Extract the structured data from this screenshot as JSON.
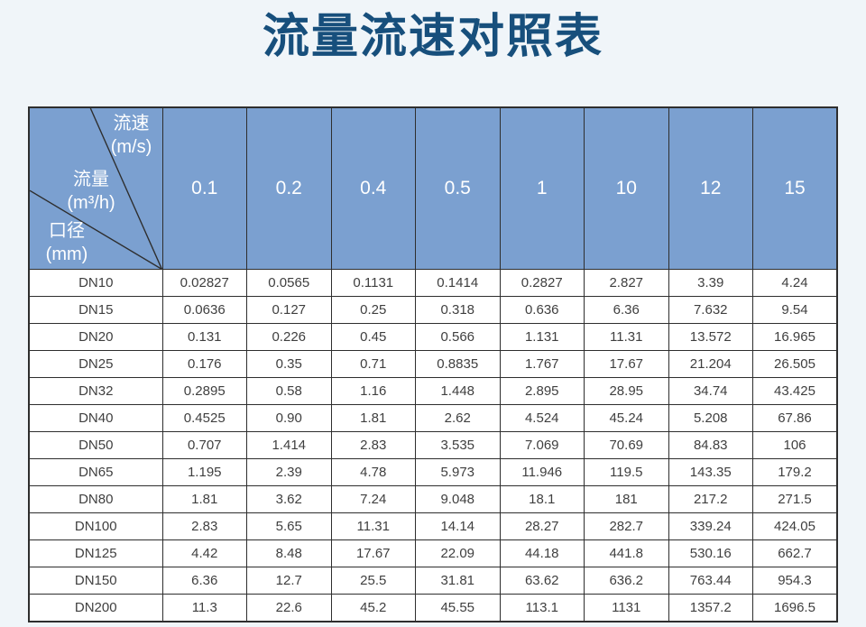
{
  "page": {
    "title": "流量流速对照表"
  },
  "theme": {
    "page_bg": "#f0f5f9",
    "title_color": "#174f7c",
    "header_bg": "#7ba0d0",
    "header_text": "#ffffff",
    "border_color": "#2e2e2e",
    "body_text": "#3f3f3f"
  },
  "table": {
    "corner": {
      "velocity_label": "流速",
      "velocity_unit": "(m/s)",
      "flow_label": "流量",
      "flow_unit": "(m³/h)",
      "diameter_label": "口径",
      "diameter_unit": "(mm)"
    },
    "velocity_headers": [
      "0.1",
      "0.2",
      "0.4",
      "0.5",
      "1",
      "10",
      "12",
      "15"
    ],
    "rows": [
      {
        "diameter": "DN10",
        "values": [
          "0.02827",
          "0.0565",
          "0.1131",
          "0.1414",
          "0.2827",
          "2.827",
          "3.39",
          "4.24"
        ]
      },
      {
        "diameter": "DN15",
        "values": [
          "0.0636",
          "0.127",
          "0.25",
          "0.318",
          "0.636",
          "6.36",
          "7.632",
          "9.54"
        ]
      },
      {
        "diameter": "DN20",
        "values": [
          "0.131",
          "0.226",
          "0.45",
          "0.566",
          "1.131",
          "11.31",
          "13.572",
          "16.965"
        ]
      },
      {
        "diameter": "DN25",
        "values": [
          "0.176",
          "0.35",
          "0.71",
          "0.8835",
          "1.767",
          "17.67",
          "21.204",
          "26.505"
        ]
      },
      {
        "diameter": "DN32",
        "values": [
          "0.2895",
          "0.58",
          "1.16",
          "1.448",
          "2.895",
          "28.95",
          "34.74",
          "43.425"
        ]
      },
      {
        "diameter": "DN40",
        "values": [
          "0.4525",
          "0.90",
          "1.81",
          "2.62",
          "4.524",
          "45.24",
          "5.208",
          "67.86"
        ]
      },
      {
        "diameter": "DN50",
        "values": [
          "0.707",
          "1.414",
          "2.83",
          "3.535",
          "7.069",
          "70.69",
          "84.83",
          "106"
        ]
      },
      {
        "diameter": "DN65",
        "values": [
          "1.195",
          "2.39",
          "4.78",
          "5.973",
          "11.946",
          "119.5",
          "143.35",
          "179.2"
        ]
      },
      {
        "diameter": "DN80",
        "values": [
          "1.81",
          "3.62",
          "7.24",
          "9.048",
          "18.1",
          "181",
          "217.2",
          "271.5"
        ]
      },
      {
        "diameter": "DN100",
        "values": [
          "2.83",
          "5.65",
          "11.31",
          "14.14",
          "28.27",
          "282.7",
          "339.24",
          "424.05"
        ]
      },
      {
        "diameter": "DN125",
        "values": [
          "4.42",
          "8.48",
          "17.67",
          "22.09",
          "44.18",
          "441.8",
          "530.16",
          "662.7"
        ]
      },
      {
        "diameter": "DN150",
        "values": [
          "6.36",
          "12.7",
          "25.5",
          "31.81",
          "63.62",
          "636.2",
          "763.44",
          "954.3"
        ]
      },
      {
        "diameter": "DN200",
        "values": [
          "11.3",
          "22.6",
          "45.2",
          "45.55",
          "113.1",
          "1131",
          "1357.2",
          "1696.5"
        ]
      }
    ]
  },
  "chart_data": {
    "type": "table",
    "title": "流量流速对照表",
    "column_header_label": "流速(m/s)",
    "row_header_label": "口径(mm)",
    "cell_value_label": "流量(m³/h)",
    "columns": [
      0.1,
      0.2,
      0.4,
      0.5,
      1,
      10,
      12,
      15
    ],
    "rows": [
      {
        "diameter": "DN10",
        "values": [
          0.02827,
          0.0565,
          0.1131,
          0.1414,
          0.2827,
          2.827,
          3.39,
          4.24
        ]
      },
      {
        "diameter": "DN15",
        "values": [
          0.0636,
          0.127,
          0.25,
          0.318,
          0.636,
          6.36,
          7.632,
          9.54
        ]
      },
      {
        "diameter": "DN20",
        "values": [
          0.131,
          0.226,
          0.45,
          0.566,
          1.131,
          11.31,
          13.572,
          16.965
        ]
      },
      {
        "diameter": "DN25",
        "values": [
          0.176,
          0.35,
          0.71,
          0.8835,
          1.767,
          17.67,
          21.204,
          26.505
        ]
      },
      {
        "diameter": "DN32",
        "values": [
          0.2895,
          0.58,
          1.16,
          1.448,
          2.895,
          28.95,
          34.74,
          43.425
        ]
      },
      {
        "diameter": "DN40",
        "values": [
          0.4525,
          0.9,
          1.81,
          2.62,
          4.524,
          45.24,
          5.208,
          67.86
        ]
      },
      {
        "diameter": "DN50",
        "values": [
          0.707,
          1.414,
          2.83,
          3.535,
          7.069,
          70.69,
          84.83,
          106
        ]
      },
      {
        "diameter": "DN65",
        "values": [
          1.195,
          2.39,
          4.78,
          5.973,
          11.946,
          119.5,
          143.35,
          179.2
        ]
      },
      {
        "diameter": "DN80",
        "values": [
          1.81,
          3.62,
          7.24,
          9.048,
          18.1,
          181,
          217.2,
          271.5
        ]
      },
      {
        "diameter": "DN100",
        "values": [
          2.83,
          5.65,
          11.31,
          14.14,
          28.27,
          282.7,
          339.24,
          424.05
        ]
      },
      {
        "diameter": "DN125",
        "values": [
          4.42,
          8.48,
          17.67,
          22.09,
          44.18,
          441.8,
          530.16,
          662.7
        ]
      },
      {
        "diameter": "DN150",
        "values": [
          6.36,
          12.7,
          25.5,
          31.81,
          63.62,
          636.2,
          763.44,
          954.3
        ]
      },
      {
        "diameter": "DN200",
        "values": [
          11.3,
          22.6,
          45.2,
          45.55,
          113.1,
          1131,
          1357.2,
          1696.5
        ]
      }
    ]
  }
}
